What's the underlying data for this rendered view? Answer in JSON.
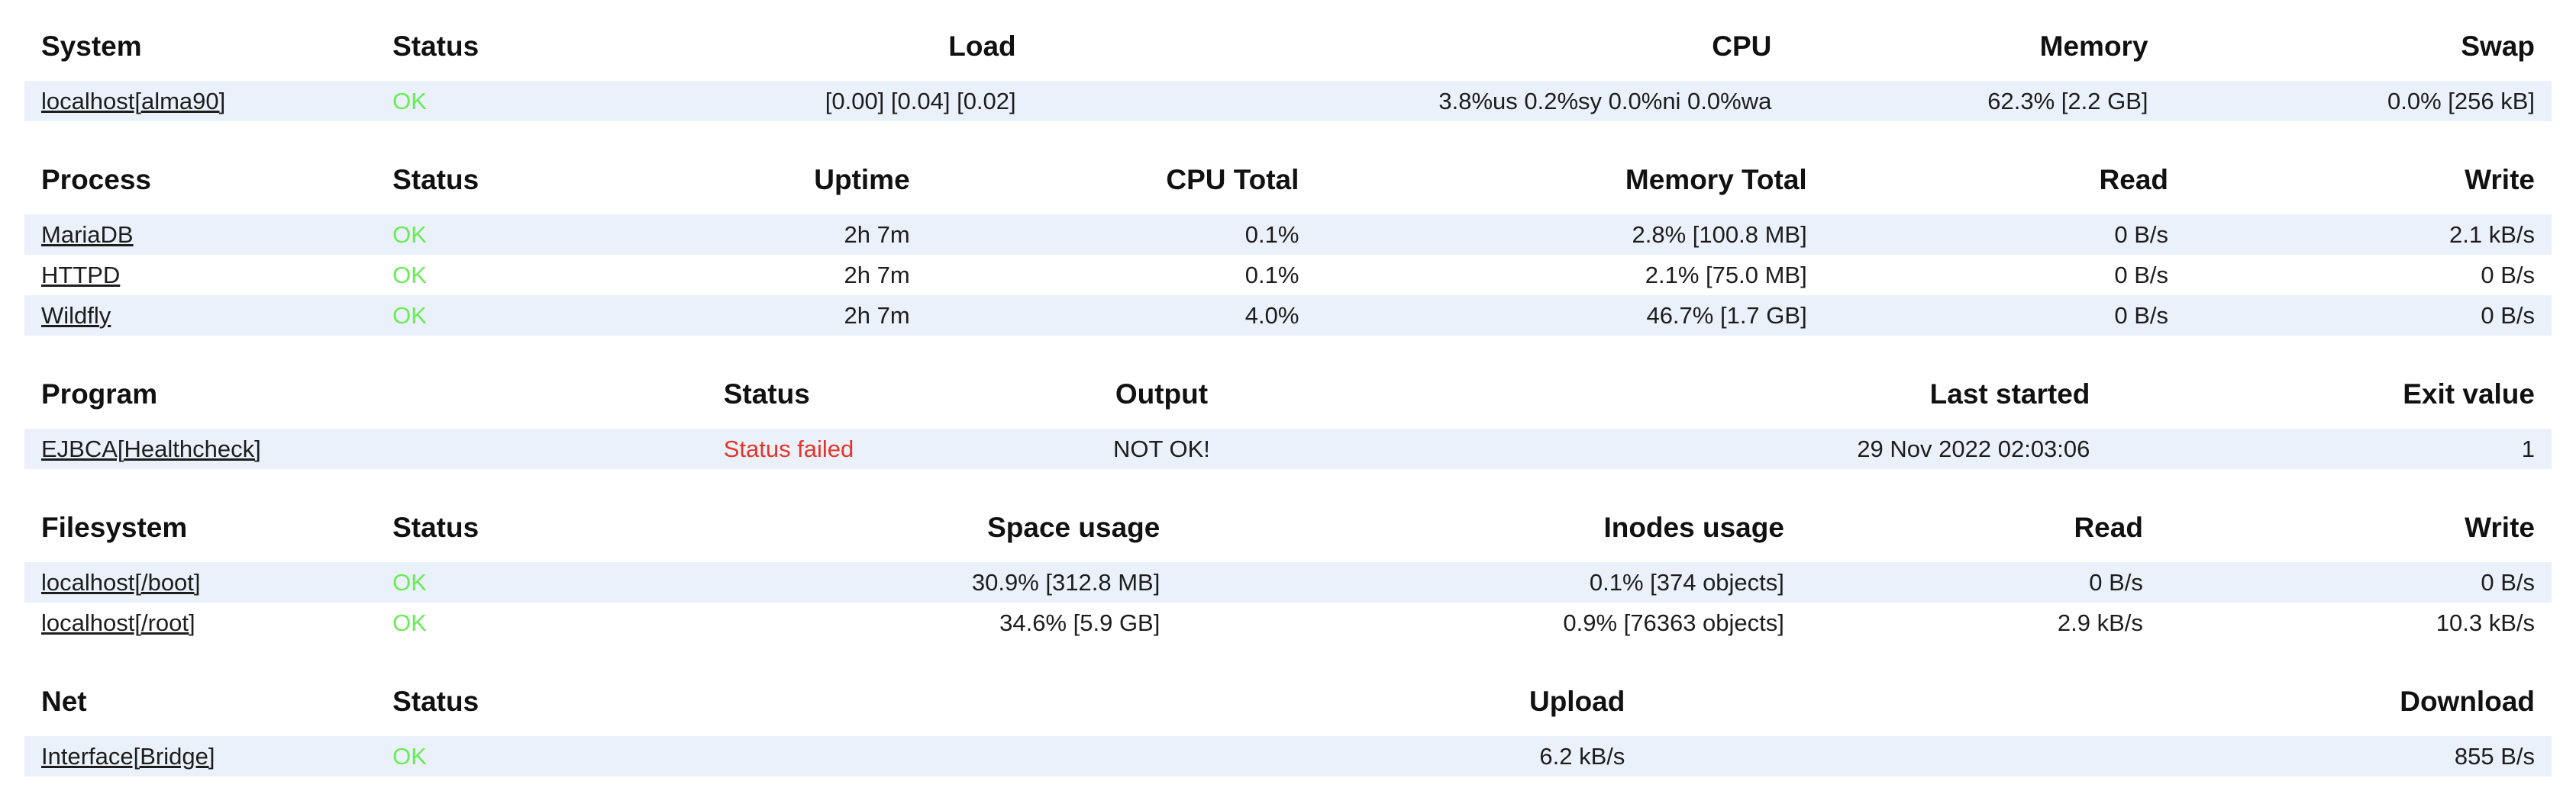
{
  "colors": {
    "ok_green": "#68ed55",
    "failed_red": "#e53529",
    "stripe_blue": "#ebf1fb",
    "header_text": "#111111",
    "body_text": "#1d1d1d"
  },
  "tables": [
    {
      "id": "system",
      "columns": [
        {
          "label": "System",
          "align": "left",
          "width": 13.9
        },
        {
          "label": "Status",
          "align": "left",
          "width": 10.0
        },
        {
          "label": "Load",
          "align": "right",
          "width": 16.0
        },
        {
          "label": "CPU",
          "align": "right",
          "width": 29.9
        },
        {
          "label": "Memory",
          "align": "right",
          "width": 14.9
        },
        {
          "label": "Swap",
          "align": "right",
          "width": 15.3
        }
      ],
      "rows": [
        {
          "status": "ok",
          "cells": [
            "localhost[alma90]",
            "OK",
            "[0.00] [0.04] [0.02]",
            "3.8%us 0.2%sy 0.0%ni 0.0%wa",
            "62.3% [2.2 GB]",
            "0.0% [256 kB]"
          ]
        }
      ]
    },
    {
      "id": "process",
      "columns": [
        {
          "label": "Process",
          "align": "left",
          "width": 13.9
        },
        {
          "label": "Status",
          "align": "left",
          "width": 10.0
        },
        {
          "label": "Uptime",
          "align": "right",
          "width": 11.8
        },
        {
          "label": "CPU Total",
          "align": "right",
          "width": 15.4
        },
        {
          "label": "Memory Total",
          "align": "right",
          "width": 20.1
        },
        {
          "label": "Read",
          "align": "right",
          "width": 14.3
        },
        {
          "label": "Write",
          "align": "right",
          "width": 14.5
        }
      ],
      "rows": [
        {
          "status": "ok",
          "cells": [
            "MariaDB",
            "OK",
            "2h 7m",
            "0.1%",
            "2.8% [100.8 MB]",
            "0 B/s",
            "2.1 kB/s"
          ]
        },
        {
          "status": "ok",
          "cells": [
            "HTTPD",
            "OK",
            "2h 7m",
            "0.1%",
            "2.1% [75.0 MB]",
            "0 B/s",
            "0 B/s"
          ]
        },
        {
          "status": "ok",
          "cells": [
            "Wildfly",
            "OK",
            "2h 7m",
            "4.0%",
            "46.7% [1.7 GB]",
            "0 B/s",
            "0 B/s"
          ]
        }
      ]
    },
    {
      "id": "program",
      "columns": [
        {
          "label": "Program",
          "align": "left",
          "width": 27.0
        },
        {
          "label": "Status",
          "align": "left",
          "width": 10.0
        },
        {
          "label": "Output",
          "align": "center",
          "width": 16.0
        },
        {
          "label": "Last started",
          "align": "right",
          "width": 29.4
        },
        {
          "label": "Exit value",
          "align": "right",
          "width": 17.6
        }
      ],
      "rows": [
        {
          "status": "failed",
          "cells": [
            "EJBCA[Healthcheck]",
            "Status failed",
            "NOT OK!",
            "29 Nov 2022 02:03:06",
            "1"
          ]
        }
      ]
    },
    {
      "id": "filesystem",
      "columns": [
        {
          "label": "Filesystem",
          "align": "left",
          "width": 13.9
        },
        {
          "label": "Status",
          "align": "left",
          "width": 10.0
        },
        {
          "label": "Space usage",
          "align": "right",
          "width": 21.7
        },
        {
          "label": "Inodes usage",
          "align": "right",
          "width": 24.7
        },
        {
          "label": "Read",
          "align": "right",
          "width": 14.2
        },
        {
          "label": "Write",
          "align": "right",
          "width": 15.5
        }
      ],
      "rows": [
        {
          "status": "ok",
          "cells": [
            "localhost[/boot]",
            "OK",
            "30.9% [312.8 MB]",
            "0.1% [374 objects]",
            "0 B/s",
            "0 B/s"
          ]
        },
        {
          "status": "ok",
          "cells": [
            "localhost[/root]",
            "OK",
            "34.6% [5.9 GB]",
            "0.9% [76363 objects]",
            "2.9 kB/s",
            "10.3 kB/s"
          ]
        }
      ]
    },
    {
      "id": "net",
      "columns": [
        {
          "label": "Net",
          "align": "left",
          "width": 13.9
        },
        {
          "label": "Status",
          "align": "left",
          "width": 10.0
        },
        {
          "label": "Upload",
          "align": "right",
          "width": 40.1
        },
        {
          "label": "Download",
          "align": "right",
          "width": 36.0
        }
      ],
      "rows": [
        {
          "status": "ok",
          "cells": [
            "Interface[Bridge]",
            "OK",
            "6.2 kB/s",
            "855 B/s"
          ]
        }
      ]
    }
  ]
}
